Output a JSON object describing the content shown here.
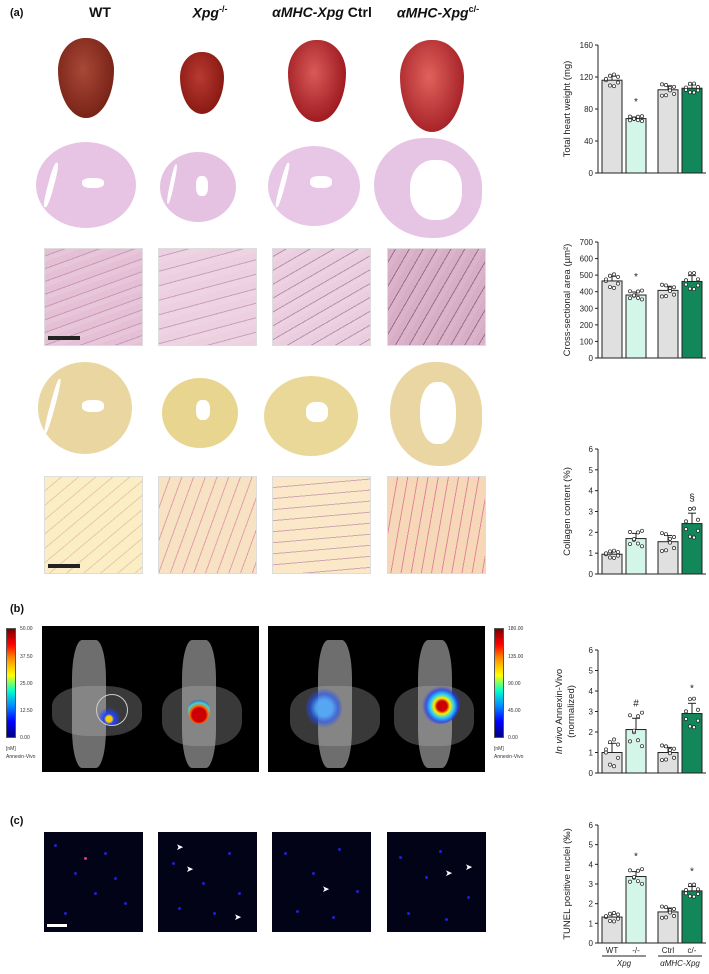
{
  "panels": {
    "a": {
      "label": "(a)"
    },
    "b": {
      "label": "(b)"
    },
    "c": {
      "label": "(c)"
    }
  },
  "columns": [
    {
      "main": "WT",
      "italic": false,
      "sup": ""
    },
    {
      "main": "Xpg",
      "italic": true,
      "sup": "-/-"
    },
    {
      "main": "αMHC-Xpg",
      "italic": true,
      "suffix": " Ctrl",
      "sup": ""
    },
    {
      "main": "αMHC-Xpg",
      "italic": true,
      "sup": "c/-"
    }
  ],
  "colorbars": {
    "left": {
      "ticks": [
        "50.00",
        "37.50",
        "25.00",
        "12.50",
        "0.00"
      ],
      "unit": "[nM]",
      "name": "Annexin-Vivo"
    },
    "right": {
      "ticks": [
        "180.00",
        "135.00",
        "90.00",
        "45.00",
        "0.00"
      ],
      "unit": "[nM]",
      "name": "Annexin-Vivo"
    }
  },
  "colors": {
    "wt_bar": "#e0e0e0",
    "ko_bar": "#d3f6e8",
    "ctrl_bar": "#e0e0e0",
    "ck_bar": "#11875a",
    "axis": "#222222"
  },
  "chart_data": [
    {
      "type": "bar",
      "title": "",
      "ylabel": "Total heart weight (mg)",
      "ylim": [
        0,
        160
      ],
      "yticks": [
        "0",
        "40",
        "80",
        "120",
        "160"
      ],
      "categories": [
        "WT",
        "Xpg-/-",
        "αMHC-Xpg Ctrl",
        "αMHC-Xpg c/-"
      ],
      "values": [
        116,
        68,
        104,
        106
      ],
      "errors": [
        5,
        2,
        5,
        4
      ],
      "annotations": [
        "",
        "*",
        "",
        ""
      ]
    },
    {
      "type": "bar",
      "ylabel": "Cross-sectional area (µm²)",
      "ylim": [
        0,
        700
      ],
      "yticks": [
        "0",
        "100",
        "200",
        "300",
        "400",
        "500",
        "600",
        "700"
      ],
      "categories": [
        "WT",
        "Xpg-/-",
        "αMHC-Xpg Ctrl",
        "αMHC-Xpg c/-"
      ],
      "values": [
        465,
        380,
        408,
        462
      ],
      "errors": [
        28,
        18,
        25,
        35
      ],
      "annotations": [
        "",
        "*",
        "",
        ""
      ]
    },
    {
      "type": "bar",
      "ylabel": "Collagen content (%)",
      "ylim": [
        0,
        6
      ],
      "yticks": [
        "0",
        "1",
        "2",
        "3",
        "4",
        "5",
        "6"
      ],
      "categories": [
        "WT",
        "Xpg-/-",
        "αMHC-Xpg Ctrl",
        "αMHC-Xpg c/-"
      ],
      "values": [
        0.95,
        1.7,
        1.55,
        2.42
      ],
      "errors": [
        0.12,
        0.25,
        0.3,
        0.5
      ],
      "annotations": [
        "",
        "",
        "",
        "§"
      ]
    },
    {
      "type": "bar",
      "ylabel": "In vivo Annexin-Vivo (normalized)",
      "ylim": [
        0,
        6
      ],
      "yticks": [
        "0",
        "1",
        "2",
        "3",
        "4",
        "5",
        "6"
      ],
      "categories": [
        "WT",
        "Xpg-/-",
        "αMHC-Xpg Ctrl",
        "αMHC-Xpg c/-"
      ],
      "values": [
        1.0,
        2.12,
        1.0,
        2.9
      ],
      "errors": [
        0.45,
        0.55,
        0.25,
        0.5
      ],
      "annotations": [
        "",
        "#",
        "",
        "*"
      ]
    },
    {
      "type": "bar",
      "ylabel": "TUNEL positive nuclei (‰)",
      "ylim": [
        0,
        6
      ],
      "yticks": [
        "0",
        "1",
        "2",
        "3",
        "4",
        "5",
        "6"
      ],
      "categories": [
        "WT",
        "-/-",
        "Ctrl",
        "c/-"
      ],
      "group_labels": [
        "Xpg",
        "αMHC-Xpg"
      ],
      "values": [
        1.32,
        3.38,
        1.58,
        2.65
      ],
      "errors": [
        0.15,
        0.25,
        0.2,
        0.22
      ],
      "annotations": [
        "",
        "*",
        "",
        "*"
      ]
    }
  ]
}
